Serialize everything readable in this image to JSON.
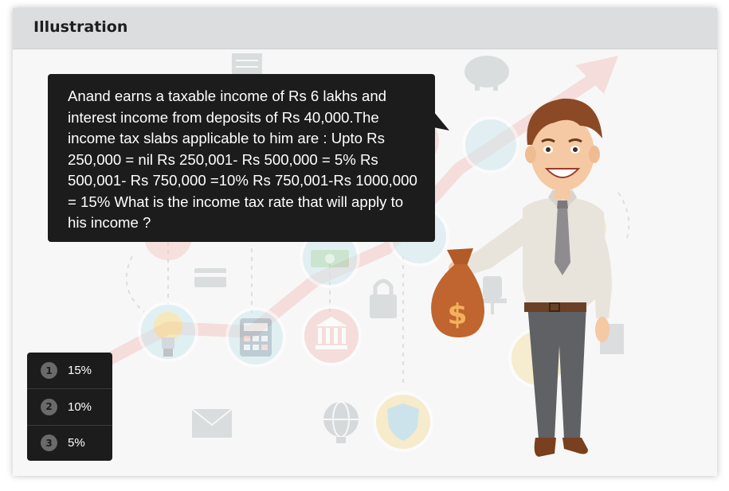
{
  "header": {
    "title": "Illustration"
  },
  "question": {
    "text": "Anand earns a taxable income of Rs 6 lakhs and interest income from deposits of Rs 40,000.The income tax slabs applicable to him are : Upto Rs 250,000 =  nil Rs 250,001- Rs 500,000 = 5% Rs 500,001- Rs 750,000 =10% Rs 750,001-Rs 1000,000 = 15% What is the income tax rate that will apply to his income ?"
  },
  "options": [
    {
      "number": "1",
      "label": "15%"
    },
    {
      "number": "2",
      "label": "10%"
    },
    {
      "number": "3",
      "label": "5%"
    }
  ],
  "illustration": {
    "character": "businessman-holding-money-bag",
    "money_bag_symbol": "$",
    "background_icons": [
      "lightbulb-icon",
      "calculator-icon",
      "bank-icon",
      "money-icon",
      "shield-icon",
      "globe-icon",
      "envelope-icon",
      "lock-icon",
      "piggy-bank-icon",
      "document-icon",
      "chair-icon"
    ]
  },
  "colors": {
    "header_bg": "#dcdddf",
    "bubble_bg": "#1c1c1c",
    "arrow": "#f3c9c4",
    "shirt": "#e8e4dc",
    "tie": "#8f8c8f",
    "bag": "#c0652f"
  }
}
